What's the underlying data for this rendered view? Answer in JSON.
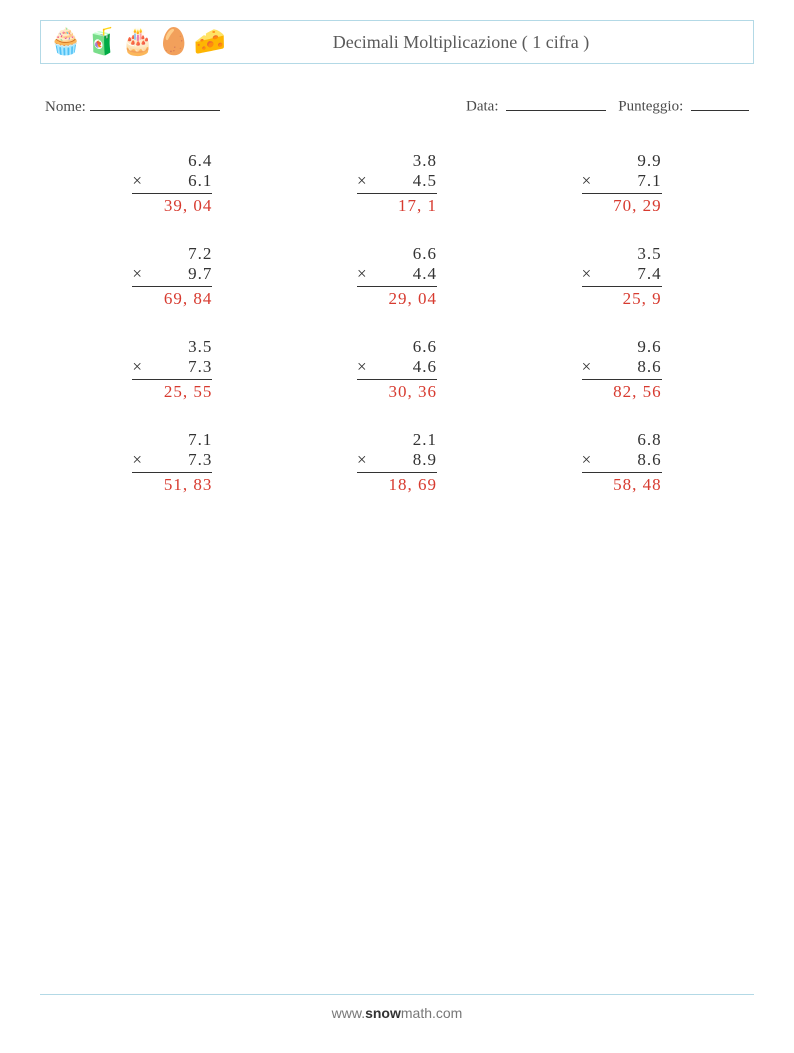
{
  "title": "Decimali Moltiplicazione ( 1 cifra )",
  "icons": [
    "🧁",
    "🧃",
    "🎂",
    "🥚",
    "🧀"
  ],
  "meta": {
    "name_label": "Nome:",
    "date_label": "Data:",
    "score_label": "Punteggio:"
  },
  "answer_color": "#d73a2f",
  "text_color": "#333333",
  "operator_symbol": "×",
  "problems": [
    {
      "a": "6.4",
      "b": "6.1",
      "answer": "39, 04"
    },
    {
      "a": "3.8",
      "b": "4.5",
      "answer": "17, 1"
    },
    {
      "a": "9.9",
      "b": "7.1",
      "answer": "70, 29"
    },
    {
      "a": "7.2",
      "b": "9.7",
      "answer": "69, 84"
    },
    {
      "a": "6.6",
      "b": "4.4",
      "answer": "29, 04"
    },
    {
      "a": "3.5",
      "b": "7.4",
      "answer": "25, 9"
    },
    {
      "a": "3.5",
      "b": "7.3",
      "answer": "25, 55"
    },
    {
      "a": "6.6",
      "b": "4.6",
      "answer": "30, 36"
    },
    {
      "a": "9.6",
      "b": "8.6",
      "answer": "82, 56"
    },
    {
      "a": "7.1",
      "b": "7.3",
      "answer": "51, 83"
    },
    {
      "a": "2.1",
      "b": "8.9",
      "answer": "18, 69"
    },
    {
      "a": "6.8",
      "b": "8.6",
      "answer": "58, 48"
    }
  ],
  "footer": {
    "prefix": "www.",
    "brand": "snow",
    "suffix": "math.com"
  }
}
